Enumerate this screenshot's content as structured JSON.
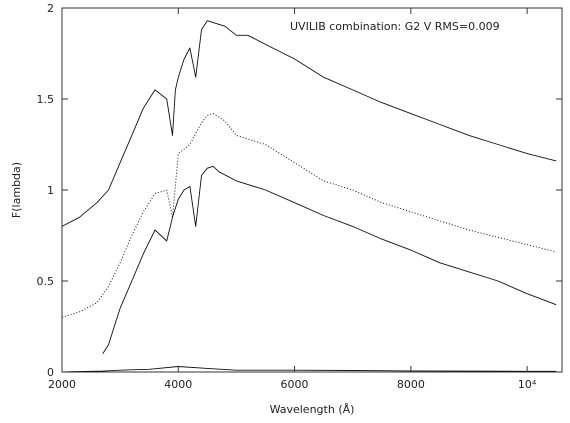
{
  "chart_data": {
    "type": "line",
    "title": "",
    "annotation": "UVILIB combination: G2 V RMS=0.009",
    "xlabel": "Wavelength (Å)",
    "ylabel": "F(lambda)",
    "xlim": [
      2000,
      10600
    ],
    "ylim": [
      0,
      2
    ],
    "xticks": [
      {
        "value": 2000,
        "label": "2000"
      },
      {
        "value": 4000,
        "label": "4000"
      },
      {
        "value": 6000,
        "label": "6000"
      },
      {
        "value": 8000,
        "label": "8000"
      },
      {
        "value": 10000,
        "label": "10⁴"
      }
    ],
    "yticks": [
      {
        "value": 0,
        "label": "0"
      },
      {
        "value": 0.5,
        "label": "0.5"
      },
      {
        "value": 1,
        "label": "1"
      },
      {
        "value": 1.5,
        "label": "1.5"
      },
      {
        "value": 2,
        "label": "2"
      }
    ],
    "grid": false,
    "legend": "none",
    "series": [
      {
        "style": "solid",
        "color": "#111111",
        "x": [
          2000,
          2300,
          2600,
          2800,
          3000,
          3200,
          3400,
          3600,
          3800,
          3900,
          3950,
          4000,
          4100,
          4200,
          4300,
          4400,
          4500,
          4600,
          4800,
          5000,
          5200,
          5500,
          6000,
          6500,
          7000,
          7500,
          8000,
          8500,
          9000,
          9500,
          10000,
          10500
        ],
        "y": [
          0.8,
          0.85,
          0.93,
          1.0,
          1.15,
          1.3,
          1.45,
          1.55,
          1.5,
          1.3,
          1.55,
          1.62,
          1.72,
          1.78,
          1.62,
          1.88,
          1.93,
          1.92,
          1.9,
          1.85,
          1.85,
          1.8,
          1.72,
          1.62,
          1.55,
          1.48,
          1.42,
          1.36,
          1.3,
          1.25,
          1.2,
          1.16
        ]
      },
      {
        "style": "dotted",
        "color": "#111111",
        "x": [
          2000,
          2300,
          2600,
          2800,
          3000,
          3200,
          3400,
          3600,
          3800,
          3900,
          4000,
          4200,
          4400,
          4500,
          4600,
          4800,
          5000,
          5500,
          6000,
          6500,
          7000,
          7500,
          8000,
          8500,
          9000,
          9500,
          10000,
          10500
        ],
        "y": [
          0.3,
          0.33,
          0.38,
          0.47,
          0.6,
          0.75,
          0.88,
          0.98,
          1.0,
          0.85,
          1.2,
          1.25,
          1.37,
          1.41,
          1.42,
          1.38,
          1.3,
          1.25,
          1.15,
          1.05,
          1.0,
          0.93,
          0.88,
          0.83,
          0.78,
          0.74,
          0.7,
          0.66
        ]
      },
      {
        "style": "solid",
        "color": "#111111",
        "x": [
          2700,
          2800,
          3000,
          3200,
          3400,
          3600,
          3800,
          3900,
          4000,
          4100,
          4200,
          4300,
          4400,
          4500,
          4600,
          4700,
          5000,
          5500,
          6000,
          6500,
          7000,
          7500,
          8000,
          8500,
          9000,
          9500,
          10000,
          10500
        ],
        "y": [
          0.1,
          0.15,
          0.35,
          0.5,
          0.65,
          0.78,
          0.72,
          0.85,
          0.95,
          1.0,
          1.02,
          0.8,
          1.08,
          1.12,
          1.13,
          1.1,
          1.05,
          1.0,
          0.93,
          0.86,
          0.8,
          0.73,
          0.67,
          0.6,
          0.55,
          0.5,
          0.43,
          0.37
        ]
      },
      {
        "style": "solid",
        "color": "#111111",
        "x": [
          2000,
          2700,
          3000,
          3500,
          4000,
          4500,
          5000,
          6000,
          7000,
          8000,
          9000,
          10000,
          10500
        ],
        "y": [
          0,
          0.005,
          0.01,
          0.015,
          0.03,
          0.02,
          0.01,
          0.01,
          0.008,
          0.006,
          0.005,
          0.004,
          0.004
        ]
      }
    ]
  }
}
